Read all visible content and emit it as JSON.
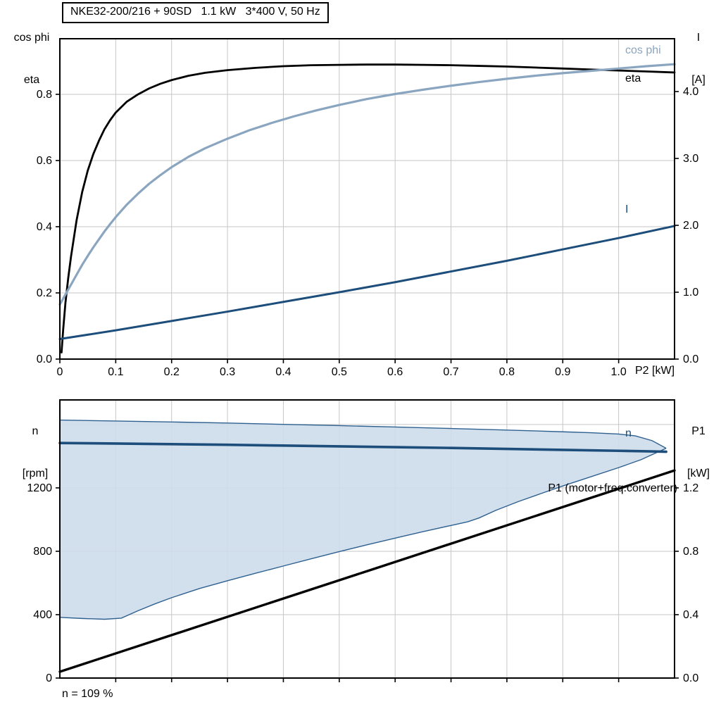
{
  "colors": {
    "eta": "#000000",
    "cos_phi": "#8aa5bf",
    "current": "#1d4e7b",
    "speed": "#1d4e7b",
    "p1": "#000000",
    "band_fill": "#cddcea",
    "band_edge": "#2e6090",
    "grid": "#c6c6c6",
    "frame": "#000000"
  },
  "chart_data": [
    {
      "type": "line",
      "title": "NKE32-200/216 + 90SD   1.1 kW   3*400 V, 50 Hz",
      "x_title": "P2 [kW]",
      "x_range": [
        0,
        1.1
      ],
      "x_ticks": [
        0,
        0.1,
        0.2,
        0.3,
        0.4,
        0.5,
        0.6,
        0.7,
        0.8,
        0.9,
        1.0
      ],
      "x_tick_labels": [
        "0",
        "0.1",
        "0.2",
        "0.3",
        "0.4",
        "0.5",
        "0.6",
        "0.7",
        "0.8",
        "0.9",
        "1.0"
      ],
      "y_left": {
        "title_lines": [
          "cos phi",
          "eta"
        ],
        "range": [
          0,
          0.968
        ],
        "ticks": [
          0,
          0.2,
          0.4,
          0.6,
          0.8
        ],
        "tick_labels": [
          "0.0",
          "0.2",
          "0.4",
          "0.6",
          "0.8"
        ],
        "grid": [
          0.2,
          0.4,
          0.6,
          0.8
        ]
      },
      "y_right": {
        "title_lines": [
          "I",
          "[A]"
        ],
        "range": [
          0,
          4.79
        ],
        "ticks": [
          0,
          1,
          2,
          3,
          4
        ],
        "tick_labels": [
          "0.0",
          "1.0",
          "2.0",
          "3.0",
          "4.0"
        ]
      },
      "series": [
        {
          "name": "eta",
          "axis": "left",
          "color_key": "eta",
          "width": 2.8,
          "points": [
            [
              0.003,
              0.02
            ],
            [
              0.006,
              0.09
            ],
            [
              0.01,
              0.17
            ],
            [
              0.015,
              0.245
            ],
            [
              0.02,
              0.31
            ],
            [
              0.03,
              0.42
            ],
            [
              0.04,
              0.505
            ],
            [
              0.05,
              0.57
            ],
            [
              0.06,
              0.62
            ],
            [
              0.07,
              0.66
            ],
            [
              0.08,
              0.695
            ],
            [
              0.09,
              0.722
            ],
            [
              0.1,
              0.745
            ],
            [
              0.12,
              0.778
            ],
            [
              0.14,
              0.8
            ],
            [
              0.16,
              0.818
            ],
            [
              0.18,
              0.832
            ],
            [
              0.2,
              0.843
            ],
            [
              0.23,
              0.856
            ],
            [
              0.26,
              0.865
            ],
            [
              0.3,
              0.873
            ],
            [
              0.35,
              0.88
            ],
            [
              0.4,
              0.885
            ],
            [
              0.45,
              0.888
            ],
            [
              0.5,
              0.889
            ],
            [
              0.55,
              0.89
            ],
            [
              0.6,
              0.89
            ],
            [
              0.65,
              0.889
            ],
            [
              0.7,
              0.888
            ],
            [
              0.75,
              0.886
            ],
            [
              0.8,
              0.884
            ],
            [
              0.85,
              0.881
            ],
            [
              0.9,
              0.878
            ],
            [
              0.95,
              0.875
            ],
            [
              1.0,
              0.872
            ],
            [
              1.05,
              0.869
            ],
            [
              1.1,
              0.866
            ]
          ]
        },
        {
          "name": "cos phi",
          "axis": "left",
          "color_key": "cos_phi",
          "width": 3.2,
          "points": [
            [
              0,
              0.165
            ],
            [
              0.01,
              0.195
            ],
            [
              0.02,
              0.225
            ],
            [
              0.03,
              0.255
            ],
            [
              0.04,
              0.285
            ],
            [
              0.05,
              0.312
            ],
            [
              0.06,
              0.338
            ],
            [
              0.07,
              0.362
            ],
            [
              0.08,
              0.386
            ],
            [
              0.09,
              0.408
            ],
            [
              0.1,
              0.429
            ],
            [
              0.12,
              0.467
            ],
            [
              0.14,
              0.5
            ],
            [
              0.16,
              0.53
            ],
            [
              0.18,
              0.556
            ],
            [
              0.2,
              0.58
            ],
            [
              0.23,
              0.611
            ],
            [
              0.26,
              0.637
            ],
            [
              0.3,
              0.666
            ],
            [
              0.34,
              0.692
            ],
            [
              0.38,
              0.714
            ],
            [
              0.42,
              0.734
            ],
            [
              0.46,
              0.752
            ],
            [
              0.5,
              0.768
            ],
            [
              0.55,
              0.786
            ],
            [
              0.6,
              0.801
            ],
            [
              0.65,
              0.814
            ],
            [
              0.7,
              0.826
            ],
            [
              0.75,
              0.837
            ],
            [
              0.8,
              0.847
            ],
            [
              0.85,
              0.856
            ],
            [
              0.9,
              0.864
            ],
            [
              0.95,
              0.871
            ],
            [
              1.0,
              0.878
            ],
            [
              1.05,
              0.885
            ],
            [
              1.1,
              0.891
            ]
          ]
        },
        {
          "name": "I",
          "axis": "right",
          "color_key": "current",
          "width": 3,
          "points": [
            [
              0,
              0.3
            ],
            [
              0.1,
              0.43
            ],
            [
              0.2,
              0.57
            ],
            [
              0.3,
              0.71
            ],
            [
              0.4,
              0.855
            ],
            [
              0.5,
              1.0
            ],
            [
              0.6,
              1.15
            ],
            [
              0.7,
              1.31
            ],
            [
              0.8,
              1.47
            ],
            [
              0.9,
              1.64
            ],
            [
              1.0,
              1.81
            ],
            [
              1.1,
              1.99
            ]
          ]
        }
      ]
    },
    {
      "type": "line",
      "x_title": "",
      "x_range": [
        0,
        1.1
      ],
      "x_ticks": [
        0.1,
        0.2,
        0.3,
        0.4,
        0.5,
        0.6,
        0.7,
        0.8,
        0.9,
        1.0
      ],
      "x_tick_labels": [],
      "y_left": {
        "title_lines": [
          "n",
          "[rpm]"
        ],
        "range": [
          0,
          1755
        ],
        "ticks": [
          0,
          400,
          800,
          1200
        ],
        "tick_labels": [
          "0",
          "400",
          "800",
          "1200"
        ],
        "grid": [
          400,
          800,
          1200,
          1600
        ]
      },
      "y_right": {
        "title_lines": [
          "P1",
          "[kW]"
        ],
        "range": [
          0,
          1.755
        ],
        "ticks": [
          0,
          0.4,
          0.8,
          1.2
        ],
        "tick_labels": [
          "0.0",
          "0.4",
          "0.8",
          "1.2"
        ]
      },
      "band": {
        "name": "speed-range",
        "axis": "left",
        "fill_key": "band_fill",
        "edge_key": "band_edge",
        "upper": [
          [
            0,
            1628
          ],
          [
            0.1,
            1622
          ],
          [
            0.2,
            1616
          ],
          [
            0.3,
            1609
          ],
          [
            0.4,
            1601
          ],
          [
            0.5,
            1593
          ],
          [
            0.6,
            1584
          ],
          [
            0.7,
            1575
          ],
          [
            0.8,
            1565
          ],
          [
            0.9,
            1554
          ],
          [
            0.95,
            1548
          ],
          [
            1.0,
            1540
          ],
          [
            1.03,
            1528
          ],
          [
            1.06,
            1498
          ],
          [
            1.085,
            1450
          ]
        ],
        "lower": [
          [
            0,
            383
          ],
          [
            0.04,
            376
          ],
          [
            0.08,
            371
          ],
          [
            0.11,
            378
          ],
          [
            0.14,
            425
          ],
          [
            0.17,
            468
          ],
          [
            0.2,
            507
          ],
          [
            0.25,
            565
          ],
          [
            0.3,
            614
          ],
          [
            0.35,
            661
          ],
          [
            0.4,
            707
          ],
          [
            0.45,
            753
          ],
          [
            0.5,
            798
          ],
          [
            0.55,
            841
          ],
          [
            0.6,
            883
          ],
          [
            0.65,
            924
          ],
          [
            0.7,
            963
          ],
          [
            0.73,
            986
          ],
          [
            0.75,
            1010
          ],
          [
            0.78,
            1058
          ],
          [
            0.82,
            1113
          ],
          [
            0.86,
            1163
          ],
          [
            0.9,
            1212
          ],
          [
            0.95,
            1270
          ],
          [
            1.0,
            1328
          ],
          [
            1.04,
            1378
          ],
          [
            1.085,
            1450
          ]
        ]
      },
      "series": [
        {
          "name": "n",
          "axis": "left",
          "color_key": "speed",
          "width": 3.6,
          "points": [
            [
              0,
              1483
            ],
            [
              0.1,
              1480
            ],
            [
              0.2,
              1476
            ],
            [
              0.3,
              1472
            ],
            [
              0.4,
              1467
            ],
            [
              0.5,
              1462
            ],
            [
              0.6,
              1457
            ],
            [
              0.7,
              1452
            ],
            [
              0.8,
              1446
            ],
            [
              0.9,
              1440
            ],
            [
              1.0,
              1434
            ],
            [
              1.05,
              1431
            ],
            [
              1.085,
              1428
            ]
          ]
        },
        {
          "name": "P1 (motor+freq.converter)",
          "axis": "right",
          "color_key": "p1",
          "width": 3.4,
          "points": [
            [
              0,
              0.04
            ],
            [
              0.55,
              0.675
            ],
            [
              1.1,
              1.31
            ]
          ]
        }
      ],
      "footnote": "n = 109 %"
    }
  ]
}
